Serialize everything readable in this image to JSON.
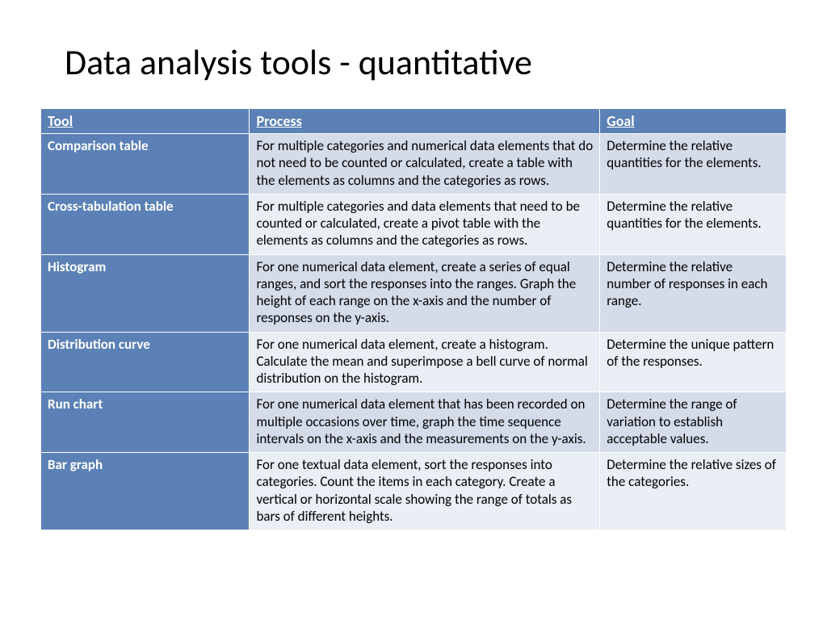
{
  "title": "Data analysis tools - quantitative",
  "colors": {
    "header_bg": "#5b81b6",
    "tool_bg": "#5b81b6",
    "row_odd_bg": "#d4dbe9",
    "row_even_bg": "#eaeef5",
    "header_text": "#ffffff",
    "body_text": "#000000"
  },
  "table": {
    "columns": [
      "Tool",
      "Process",
      "Goal"
    ],
    "rows": [
      {
        "tool": "Comparison table",
        "process": "For multiple categories and numerical data elements that do not need to be counted or calculated, create a table with the elements as columns and the categories as rows.",
        "goal": "Determine the relative quantities for the elements."
      },
      {
        "tool": "Cross-tabulation table",
        "process": "For multiple categories and data elements that need to be counted or calculated, create a pivot table with the elements as columns and the categories as rows.",
        "goal": "Determine the relative quantities for the elements."
      },
      {
        "tool": "Histogram",
        "process": "For one numerical data element, create a series of equal ranges, and sort the responses into the ranges.  Graph the height of each range on the x-axis and the number of responses on the y-axis.",
        "goal": "Determine the relative number of responses in each range."
      },
      {
        "tool": "Distribution curve",
        "process": "For one numerical data element, create a histogram.  Calculate the mean and superimpose a bell curve of normal distribution on the histogram.",
        "goal": "Determine the unique pattern of the responses."
      },
      {
        "tool": "Run chart",
        "process": "For one numerical data element that has been recorded on multiple occasions over time, graph the time sequence intervals on the x-axis and the measurements on the y-axis.",
        "goal": "Determine the range of variation to establish acceptable values."
      },
      {
        "tool": "Bar graph",
        "process": "For one textual data element, sort the responses into categories.  Count the items in each category.  Create a vertical or horizontal scale showing the range of totals as bars of different heights.",
        "goal": "Determine the relative sizes of the categories."
      }
    ]
  }
}
